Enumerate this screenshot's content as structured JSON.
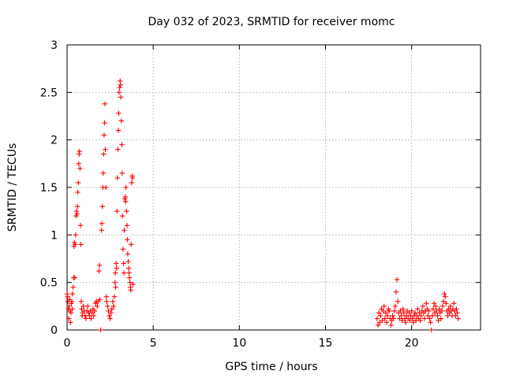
{
  "chart_data": {
    "type": "scatter",
    "title": "Day 032 of 2023, SRMTID for receiver momc",
    "xlabel": "GPS time / hours",
    "ylabel": "SRMTID / TECUs",
    "xlim": [
      0,
      24
    ],
    "ylim": [
      0,
      3
    ],
    "xticks": [
      0,
      5,
      10,
      15,
      20
    ],
    "yticks": [
      0,
      0.5,
      1,
      1.5,
      2,
      2.5,
      3
    ],
    "ytick_labels": [
      "0",
      "0.5",
      "1",
      "1.5",
      "2",
      "2.5",
      "3"
    ],
    "xtick_labels": [
      "0",
      "5",
      "10",
      "15",
      "20"
    ],
    "grid": true,
    "marker": "+",
    "color": "#ff0000",
    "series": [
      {
        "name": "momc",
        "points": [
          [
            0.0,
            0.38
          ],
          [
            0.03,
            0.35
          ],
          [
            0.05,
            0.3
          ],
          [
            0.08,
            0.22
          ],
          [
            0.1,
            0.12
          ],
          [
            0.12,
            0.25
          ],
          [
            0.15,
            0.32
          ],
          [
            0.18,
            0.2
          ],
          [
            0.2,
            0.08
          ],
          [
            0.22,
            0.18
          ],
          [
            0.25,
            0.28
          ],
          [
            0.28,
            0.3
          ],
          [
            0.3,
            0.22
          ],
          [
            0.32,
            0.38
          ],
          [
            0.35,
            0.45
          ],
          [
            0.38,
            0.55
          ],
          [
            0.4,
            0.88
          ],
          [
            0.42,
            0.92
          ],
          [
            0.45,
            0.55
          ],
          [
            0.48,
            0.9
          ],
          [
            0.5,
            1.0
          ],
          [
            0.52,
            1.2
          ],
          [
            0.55,
            1.25
          ],
          [
            0.58,
            1.22
          ],
          [
            0.6,
            1.3
          ],
          [
            0.62,
            1.45
          ],
          [
            0.65,
            1.55
          ],
          [
            0.68,
            1.75
          ],
          [
            0.7,
            1.85
          ],
          [
            0.72,
            1.88
          ],
          [
            0.75,
            1.7
          ],
          [
            0.78,
            1.1
          ],
          [
            0.8,
            0.9
          ],
          [
            0.82,
            0.3
          ],
          [
            0.85,
            0.22
          ],
          [
            0.88,
            0.15
          ],
          [
            0.9,
            0.18
          ],
          [
            0.95,
            0.25
          ],
          [
            1.0,
            0.2
          ],
          [
            1.05,
            0.15
          ],
          [
            1.1,
            0.12
          ],
          [
            1.15,
            0.2
          ],
          [
            1.2,
            0.25
          ],
          [
            1.25,
            0.18
          ],
          [
            1.3,
            0.15
          ],
          [
            1.35,
            0.2
          ],
          [
            1.4,
            0.12
          ],
          [
            1.45,
            0.18
          ],
          [
            1.5,
            0.22
          ],
          [
            1.55,
            0.15
          ],
          [
            1.6,
            0.2
          ],
          [
            1.65,
            0.28
          ],
          [
            1.7,
            0.3
          ],
          [
            1.75,
            0.25
          ],
          [
            1.8,
            0.3
          ],
          [
            1.85,
            0.62
          ],
          [
            1.88,
            0.68
          ],
          [
            1.9,
            0.32
          ],
          [
            1.95,
            0.0
          ],
          [
            2.0,
            1.05
          ],
          [
            2.02,
            1.12
          ],
          [
            2.05,
            1.3
          ],
          [
            2.08,
            1.5
          ],
          [
            2.1,
            1.65
          ],
          [
            2.12,
            1.85
          ],
          [
            2.15,
            2.05
          ],
          [
            2.18,
            2.18
          ],
          [
            2.2,
            2.38
          ],
          [
            2.22,
            1.9
          ],
          [
            2.25,
            1.5
          ],
          [
            2.28,
            0.35
          ],
          [
            2.3,
            0.3
          ],
          [
            2.35,
            0.25
          ],
          [
            2.4,
            0.2
          ],
          [
            2.45,
            0.15
          ],
          [
            2.5,
            0.12
          ],
          [
            2.55,
            0.18
          ],
          [
            2.6,
            0.22
          ],
          [
            2.65,
            0.3
          ],
          [
            2.7,
            0.25
          ],
          [
            2.75,
            0.35
          ],
          [
            2.78,
            0.5
          ],
          [
            2.8,
            0.6
          ],
          [
            2.82,
            0.45
          ],
          [
            2.85,
            0.7
          ],
          [
            2.88,
            0.65
          ],
          [
            2.9,
            1.25
          ],
          [
            2.92,
            1.6
          ],
          [
            2.95,
            1.9
          ],
          [
            2.98,
            2.1
          ],
          [
            3.0,
            2.28
          ],
          [
            3.02,
            2.5
          ],
          [
            3.05,
            2.55
          ],
          [
            3.08,
            2.62
          ],
          [
            3.1,
            2.58
          ],
          [
            3.12,
            2.45
          ],
          [
            3.15,
            2.2
          ],
          [
            3.18,
            1.95
          ],
          [
            3.2,
            1.65
          ],
          [
            3.22,
            1.2
          ],
          [
            3.25,
            0.85
          ],
          [
            3.28,
            0.7
          ],
          [
            3.3,
            0.6
          ],
          [
            3.32,
            1.05
          ],
          [
            3.35,
            1.38
          ],
          [
            3.38,
            1.4
          ],
          [
            3.4,
            1.35
          ],
          [
            3.42,
            1.5
          ],
          [
            3.45,
            1.25
          ],
          [
            3.48,
            1.1
          ],
          [
            3.5,
            0.95
          ],
          [
            3.52,
            0.8
          ],
          [
            3.55,
            0.72
          ],
          [
            3.58,
            0.65
          ],
          [
            3.6,
            0.6
          ],
          [
            3.62,
            0.55
          ],
          [
            3.65,
            0.5
          ],
          [
            3.68,
            0.45
          ],
          [
            3.7,
            0.42
          ],
          [
            3.72,
            0.9
          ],
          [
            3.75,
            1.55
          ],
          [
            3.78,
            1.62
          ],
          [
            3.8,
            1.6
          ],
          [
            3.82,
            0.48
          ],
          [
            18.0,
            0.12
          ],
          [
            18.05,
            0.05
          ],
          [
            18.1,
            0.18
          ],
          [
            18.15,
            0.08
          ],
          [
            18.2,
            0.15
          ],
          [
            18.25,
            0.22
          ],
          [
            18.3,
            0.1
          ],
          [
            18.35,
            0.2
          ],
          [
            18.4,
            0.25
          ],
          [
            18.45,
            0.12
          ],
          [
            18.5,
            0.18
          ],
          [
            18.55,
            0.08
          ],
          [
            18.6,
            0.15
          ],
          [
            18.65,
            0.22
          ],
          [
            18.7,
            0.2
          ],
          [
            18.75,
            0.12
          ],
          [
            18.8,
            0.05
          ],
          [
            18.85,
            0.1
          ],
          [
            18.9,
            0.15
          ],
          [
            18.95,
            0.12
          ],
          [
            19.0,
            0.2
          ],
          [
            19.05,
            0.25
          ],
          [
            19.1,
            0.4
          ],
          [
            19.15,
            0.53
          ],
          [
            19.2,
            0.3
          ],
          [
            19.25,
            0.18
          ],
          [
            19.3,
            0.12
          ],
          [
            19.35,
            0.2
          ],
          [
            19.4,
            0.15
          ],
          [
            19.45,
            0.1
          ],
          [
            19.5,
            0.22
          ],
          [
            19.55,
            0.18
          ],
          [
            19.6,
            0.12
          ],
          [
            19.65,
            0.08
          ],
          [
            19.7,
            0.15
          ],
          [
            19.75,
            0.2
          ],
          [
            19.8,
            0.12
          ],
          [
            19.85,
            0.18
          ],
          [
            19.9,
            0.1
          ],
          [
            19.95,
            0.15
          ],
          [
            20.0,
            0.2
          ],
          [
            20.05,
            0.12
          ],
          [
            20.1,
            0.08
          ],
          [
            20.15,
            0.15
          ],
          [
            20.2,
            0.18
          ],
          [
            20.25,
            0.1
          ],
          [
            20.3,
            0.15
          ],
          [
            20.35,
            0.22
          ],
          [
            20.4,
            0.12
          ],
          [
            20.45,
            0.18
          ],
          [
            20.5,
            0.1
          ],
          [
            20.55,
            0.15
          ],
          [
            20.6,
            0.2
          ],
          [
            20.65,
            0.25
          ],
          [
            20.7,
            0.18
          ],
          [
            20.75,
            0.12
          ],
          [
            20.8,
            0.2
          ],
          [
            20.85,
            0.28
          ],
          [
            20.9,
            0.22
          ],
          [
            20.95,
            0.15
          ],
          [
            21.0,
            0.2
          ],
          [
            21.05,
            0.12
          ],
          [
            21.1,
            0.08
          ],
          [
            21.15,
            0.0
          ],
          [
            21.2,
            0.15
          ],
          [
            21.25,
            0.22
          ],
          [
            21.3,
            0.28
          ],
          [
            21.35,
            0.18
          ],
          [
            21.4,
            0.25
          ],
          [
            21.45,
            0.2
          ],
          [
            21.5,
            0.15
          ],
          [
            21.55,
            0.1
          ],
          [
            21.6,
            0.22
          ],
          [
            21.65,
            0.18
          ],
          [
            21.7,
            0.12
          ],
          [
            21.75,
            0.2
          ],
          [
            21.8,
            0.25
          ],
          [
            21.85,
            0.3
          ],
          [
            21.9,
            0.38
          ],
          [
            21.95,
            0.35
          ],
          [
            22.0,
            0.28
          ],
          [
            22.05,
            0.2
          ],
          [
            22.1,
            0.15
          ],
          [
            22.15,
            0.22
          ],
          [
            22.2,
            0.18
          ],
          [
            22.25,
            0.25
          ],
          [
            22.3,
            0.2
          ],
          [
            22.35,
            0.15
          ],
          [
            22.4,
            0.22
          ],
          [
            22.45,
            0.28
          ],
          [
            22.5,
            0.2
          ],
          [
            22.55,
            0.15
          ],
          [
            22.6,
            0.22
          ],
          [
            22.65,
            0.18
          ],
          [
            22.7,
            0.12
          ]
        ]
      }
    ]
  }
}
